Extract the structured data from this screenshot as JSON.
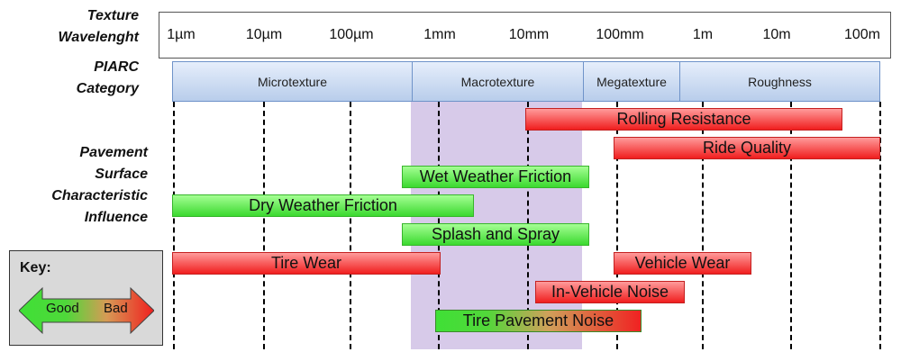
{
  "labels": {
    "wavelength_line1": "Texture",
    "wavelength_line2": "Wavelenght",
    "piarc_line1": "PIARC",
    "piarc_line2": "Category",
    "influence_line1": "Pavement",
    "influence_line2": "Surface",
    "influence_line3": "Characteristic",
    "influence_line4": "Influence"
  },
  "wavelength_ticks": [
    "1µm",
    "10µm",
    "100µm",
    "1mm",
    "10mm",
    "100mm",
    "1m",
    "10m",
    "100m"
  ],
  "piarc_categories": [
    {
      "name": "Microtexture",
      "from": "1µm",
      "to": "0.5mm"
    },
    {
      "name": "Macrotexture",
      "from": "0.5mm",
      "to": "50mm"
    },
    {
      "name": "Megatexture",
      "from": "50mm",
      "to": "0.5m"
    },
    {
      "name": "Roughness",
      "from": "0.5m",
      "to": "50m"
    }
  ],
  "characteristics": [
    {
      "name": "Rolling Resistance",
      "type": "bad"
    },
    {
      "name": "Ride Quality",
      "type": "bad"
    },
    {
      "name": "Wet Weather Friction",
      "type": "good"
    },
    {
      "name": "Dry Weather Friction",
      "type": "good"
    },
    {
      "name": "Splash and Spray",
      "type": "good"
    },
    {
      "name": "Tire Wear",
      "type": "bad"
    },
    {
      "name": "Vehicle Wear",
      "type": "bad"
    },
    {
      "name": "In-Vehicle Noise",
      "type": "bad"
    },
    {
      "name": "Tire Pavement Noise",
      "type": "good-to-bad"
    }
  ],
  "key": {
    "title": "Key:",
    "good": "Good",
    "bad": "Bad"
  },
  "colors": {
    "good": "#3bd92f",
    "bad": "#f01e1e",
    "piarc": "#b8cdeb",
    "highlight": "#cdbde3"
  }
}
